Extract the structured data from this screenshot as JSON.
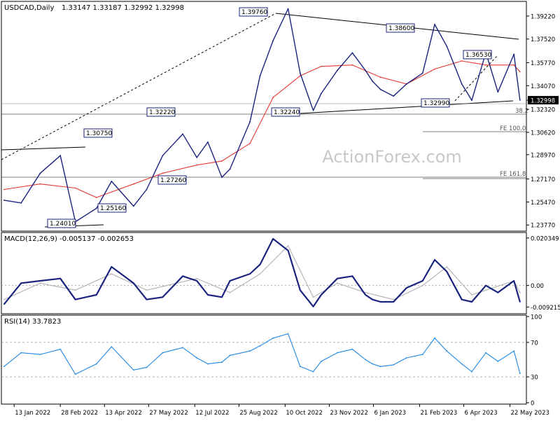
{
  "header": {
    "symbol": "USDCAD,Daily",
    "ohlc": "1.33147 1.33187 1.32992 1.32998"
  },
  "watermark": "ActionForex.com",
  "chart_data": [
    {
      "panel": "price",
      "type": "line",
      "title": "USDCAD,Daily 1.33147 1.33187 1.32992 1.32998",
      "x_ticks": [
        "13 Jan 2022",
        "28 Feb 2022",
        "13 Apr 2022",
        "27 May 2022",
        "12 Jul 2022",
        "25 Aug 2022",
        "10 Oct 2022",
        "23 Nov 2022",
        "6 Jan 2023",
        "21 Feb 2023",
        "6 Apr 2023",
        "22 May 2023"
      ],
      "y_ticks": [
        "1.39220",
        "1.37520",
        "1.35770",
        "1.34070",
        "1.32998",
        "1.32320",
        "1.30620",
        "1.28970",
        "1.27170",
        "1.25470",
        "1.23770"
      ],
      "ylim": [
        1.2342,
        1.402
      ],
      "last_price_label": "1.32998",
      "series": [
        {
          "color": "#1a237e",
          "x": [
            "2022-01-03",
            "2022-01-20",
            "2022-02-08",
            "2022-02-28",
            "2022-03-15",
            "2022-04-05",
            "2022-04-20",
            "2022-05-12",
            "2022-05-25",
            "2022-06-10",
            "2022-06-30",
            "2022-07-14",
            "2022-07-25",
            "2022-08-08",
            "2022-08-16",
            "2022-09-05",
            "2022-09-15",
            "2022-09-28",
            "2022-10-13",
            "2022-10-25",
            "2022-11-07",
            "2022-11-15",
            "2022-12-01",
            "2022-12-16",
            "2022-12-29",
            "2023-01-05",
            "2023-01-13",
            "2023-01-26",
            "2023-02-08",
            "2023-02-24",
            "2023-03-08",
            "2023-03-20",
            "2023-04-04",
            "2023-04-14",
            "2023-04-28",
            "2023-05-10",
            "2023-05-26",
            "2023-06-01"
          ],
          "values": [
            1.256,
            1.254,
            1.276,
            1.289,
            1.2401,
            1.25,
            1.27,
            1.2516,
            1.264,
            1.289,
            1.305,
            1.2876,
            1.299,
            1.273,
            1.279,
            1.314,
            1.348,
            1.374,
            1.3976,
            1.35,
            1.3224,
            1.335,
            1.352,
            1.365,
            1.352,
            1.344,
            1.338,
            1.333,
            1.342,
            1.35,
            1.386,
            1.37,
            1.342,
            1.3299,
            1.3653,
            1.336,
            1.364,
            1.33
          ]
        },
        {
          "color": "#e53935",
          "x": [
            "2022-01-03",
            "2022-02-08",
            "2022-03-15",
            "2022-04-05",
            "2022-05-12",
            "2022-06-10",
            "2022-07-14",
            "2022-08-08",
            "2022-09-05",
            "2022-09-28",
            "2022-10-25",
            "2022-11-15",
            "2022-12-16",
            "2023-01-13",
            "2023-02-08",
            "2023-03-08",
            "2023-04-04",
            "2023-04-28",
            "2023-05-26",
            "2023-06-01"
          ],
          "values": [
            1.264,
            1.268,
            1.265,
            1.258,
            1.268,
            1.276,
            1.282,
            1.285,
            1.298,
            1.332,
            1.348,
            1.355,
            1.356,
            1.347,
            1.342,
            1.353,
            1.359,
            1.356,
            1.356,
            1.351
          ]
        }
      ],
      "annotations": [
        "1.39760",
        "1.38600",
        "1.36530",
        "1.32990",
        "1.32240",
        "1.32220",
        "1.30750",
        "1.27260",
        "1.25160",
        "1.24010",
        "38.2",
        "FE 100.0",
        "FE 161.8"
      ]
    },
    {
      "panel": "macd",
      "type": "line",
      "title": "MACD(12,26,9) -0.005137 -0.002653",
      "y_ticks": [
        "0.020349",
        "0.00",
        "-0.009215"
      ],
      "ylim": [
        -0.0115,
        0.0215
      ],
      "series": [
        {
          "color": "#1a237e",
          "x": [
            "2022-01-03",
            "2022-01-20",
            "2022-02-08",
            "2022-02-28",
            "2022-03-15",
            "2022-04-05",
            "2022-04-20",
            "2022-05-12",
            "2022-05-25",
            "2022-06-10",
            "2022-06-30",
            "2022-07-14",
            "2022-07-25",
            "2022-08-08",
            "2022-08-16",
            "2022-09-05",
            "2022-09-15",
            "2022-09-28",
            "2022-10-13",
            "2022-10-25",
            "2022-11-07",
            "2022-11-15",
            "2022-12-01",
            "2022-12-16",
            "2022-12-29",
            "2023-01-05",
            "2023-01-13",
            "2023-01-26",
            "2023-02-08",
            "2023-02-24",
            "2023-03-08",
            "2023-03-20",
            "2023-04-04",
            "2023-04-14",
            "2023-04-28",
            "2023-05-10",
            "2023-05-26",
            "2023-06-01"
          ],
          "values": [
            -0.008,
            0.001,
            0.002,
            0.003,
            -0.006,
            -0.004,
            0.008,
            0.001,
            -0.006,
            -0.005,
            0.004,
            0.002,
            -0.004,
            -0.005,
            0.002,
            0.005,
            0.009,
            0.02,
            0.015,
            -0.002,
            -0.009,
            -0.004,
            0.003,
            0.004,
            -0.004,
            -0.006,
            -0.007,
            -0.007,
            -0.001,
            0.002,
            0.011,
            0.006,
            -0.006,
            -0.007,
            0.0,
            -0.003,
            0.002,
            -0.007
          ]
        },
        {
          "color": "#b0b0b0",
          "x": [
            "2022-01-03",
            "2022-02-08",
            "2022-03-15",
            "2022-04-20",
            "2022-05-25",
            "2022-07-14",
            "2022-08-16",
            "2022-09-15",
            "2022-10-13",
            "2022-11-07",
            "2022-12-01",
            "2022-12-29",
            "2023-01-26",
            "2023-02-24",
            "2023-03-20",
            "2023-04-14",
            "2023-04-28",
            "2023-05-26",
            "2023-06-01"
          ],
          "values": [
            -0.006,
            0.001,
            -0.002,
            0.005,
            -0.002,
            0.003,
            -0.003,
            0.005,
            0.017,
            -0.005,
            0.001,
            -0.003,
            -0.006,
            0.0,
            0.008,
            -0.004,
            -0.002,
            0.002,
            -0.003
          ]
        }
      ]
    },
    {
      "panel": "rsi",
      "type": "line",
      "title": "RSI(14) 33.7823",
      "y_ticks": [
        "100",
        "70",
        "30",
        "0"
      ],
      "ylim": [
        0,
        100
      ],
      "levels": [
        70,
        30
      ],
      "series": [
        {
          "color": "#1e88e5",
          "x": [
            "2022-01-03",
            "2022-01-20",
            "2022-02-08",
            "2022-02-28",
            "2022-03-15",
            "2022-04-05",
            "2022-04-20",
            "2022-05-12",
            "2022-05-25",
            "2022-06-10",
            "2022-06-30",
            "2022-07-14",
            "2022-07-25",
            "2022-08-08",
            "2022-08-16",
            "2022-09-05",
            "2022-09-15",
            "2022-09-28",
            "2022-10-13",
            "2022-10-25",
            "2022-11-07",
            "2022-11-15",
            "2022-12-01",
            "2022-12-16",
            "2022-12-29",
            "2023-01-05",
            "2023-01-13",
            "2023-01-26",
            "2023-02-08",
            "2023-02-24",
            "2023-03-08",
            "2023-03-20",
            "2023-04-04",
            "2023-04-14",
            "2023-04-28",
            "2023-05-10",
            "2023-05-26",
            "2023-06-01"
          ],
          "values": [
            42,
            58,
            56,
            62,
            33,
            45,
            65,
            38,
            41,
            58,
            64,
            52,
            45,
            47,
            55,
            60,
            66,
            75,
            80,
            42,
            36,
            48,
            58,
            62,
            50,
            45,
            42,
            44,
            52,
            56,
            75,
            60,
            45,
            36,
            58,
            48,
            60,
            34
          ]
        }
      ]
    }
  ]
}
